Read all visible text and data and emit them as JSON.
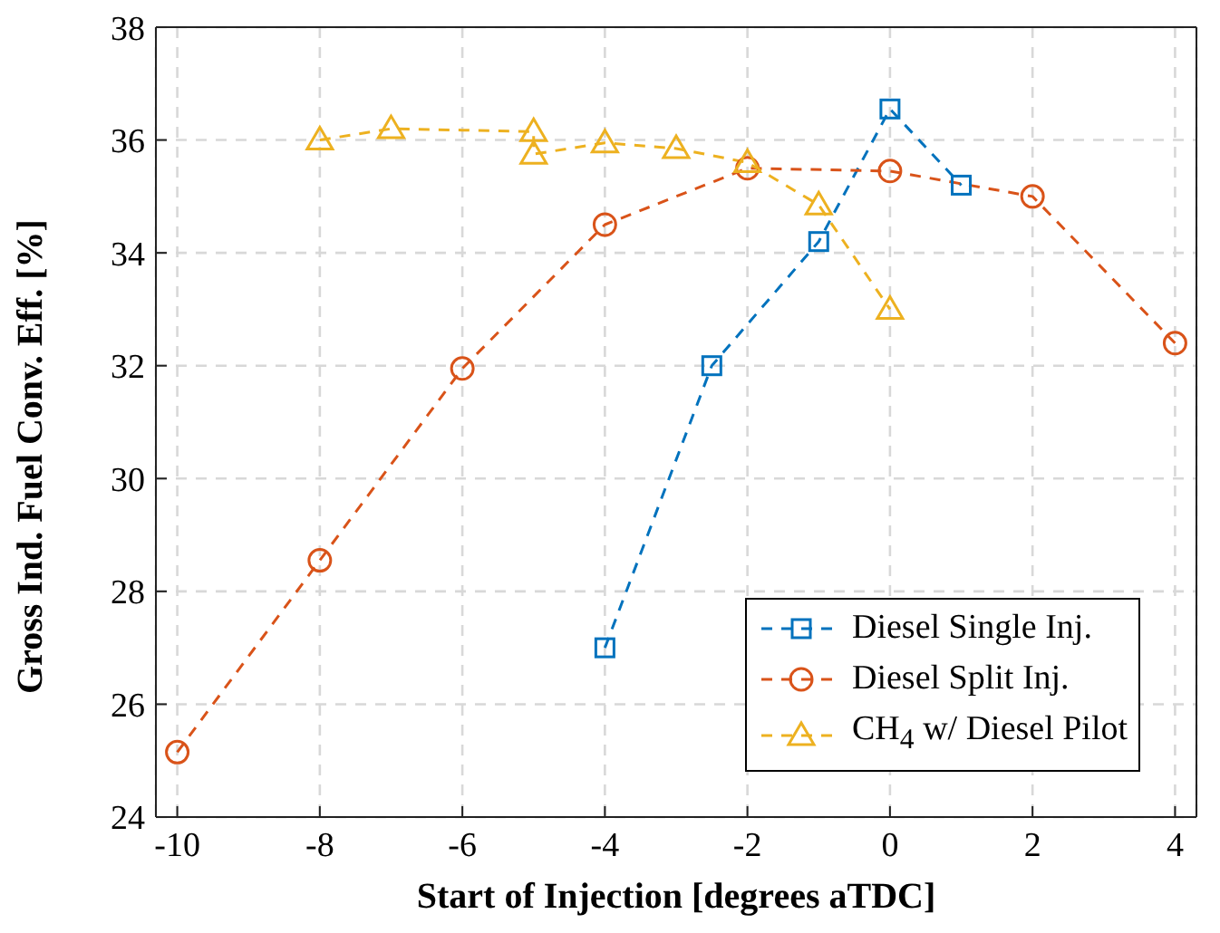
{
  "chart_data": {
    "type": "line",
    "xlabel": "Start of Injection [degrees aTDC]",
    "ylabel": "Gross Ind. Fuel Conv. Eff. [%]",
    "xlim": [
      -10.3,
      4.3
    ],
    "xticks": [
      -10,
      -8,
      -6,
      -4,
      -2,
      0,
      2,
      4
    ],
    "ylim": [
      24,
      38
    ],
    "yticks": [
      24,
      26,
      28,
      30,
      32,
      34,
      36,
      38
    ],
    "grid": true,
    "legend": "bottom right",
    "line_style": "dashed",
    "series": [
      {
        "name": "Diesel Single Inj.",
        "color": "#0072bd",
        "marker": "square",
        "x": [
          -4,
          -2.5,
          -1,
          0,
          1
        ],
        "values": [
          27.0,
          32.0,
          34.2,
          36.55,
          35.2
        ]
      },
      {
        "name": "Diesel Split Inj.",
        "color": "#d95319",
        "marker": "circle",
        "x": [
          -10,
          -8,
          -6,
          -4,
          -2,
          0,
          2,
          4
        ],
        "values": [
          25.15,
          28.55,
          31.95,
          34.5,
          35.5,
          35.45,
          35.0,
          32.4
        ]
      },
      {
        "name": "CH$_{4}$ w/ Diesel Pilot",
        "color": "#edb120",
        "marker": "triangle",
        "x": [
          -8,
          -7,
          -5,
          -5,
          -4,
          -3,
          -2,
          -1,
          0
        ],
        "values": [
          36.0,
          36.2,
          36.15,
          35.75,
          35.95,
          35.85,
          35.6,
          34.85,
          33.0
        ]
      }
    ]
  }
}
